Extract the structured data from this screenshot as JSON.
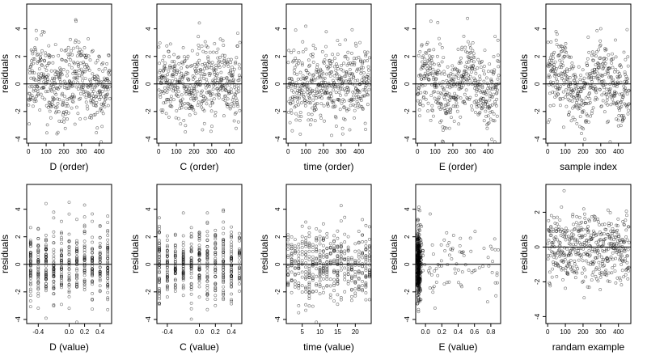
{
  "chart_data": [
    {
      "type": "scatter",
      "xlabel": "D (order)",
      "ylabel": "residuals",
      "xticks": [
        "0",
        "100",
        "200",
        "300",
        "400"
      ],
      "yticks": [
        "-4",
        "-2",
        "0",
        "2",
        "4"
      ],
      "xlim": [
        -10,
        470
      ],
      "ylim": [
        -4.3,
        5.8
      ],
      "refline_y": 0,
      "points": {
        "seed": 11,
        "n": 460,
        "x_dist": "index",
        "x_min": 1,
        "x_max": 460,
        "y_sd": 1.35,
        "y_pattern": "wave"
      }
    },
    {
      "type": "scatter",
      "xlabel": "C (order)",
      "ylabel": "residuals",
      "xticks": [
        "0",
        "100",
        "200",
        "300",
        "400"
      ],
      "yticks": [
        "-4",
        "-2",
        "0",
        "2",
        "4"
      ],
      "xlim": [
        -10,
        470
      ],
      "ylim": [
        -4.3,
        5.8
      ],
      "refline_y": 0,
      "points": {
        "seed": 23,
        "n": 460,
        "x_dist": "index",
        "x_min": 1,
        "x_max": 460,
        "y_sd": 1.35,
        "y_pattern": "flat"
      }
    },
    {
      "type": "scatter",
      "xlabel": "time (order)",
      "ylabel": "residuals",
      "xticks": [
        "0",
        "100",
        "200",
        "300",
        "400"
      ],
      "yticks": [
        "-4",
        "-2",
        "0",
        "2",
        "4"
      ],
      "xlim": [
        -10,
        470
      ],
      "ylim": [
        -4.3,
        5.8
      ],
      "refline_y": 0,
      "points": {
        "seed": 37,
        "n": 460,
        "x_dist": "index",
        "x_min": 1,
        "x_max": 460,
        "y_sd": 1.35,
        "y_pattern": "flat"
      }
    },
    {
      "type": "scatter",
      "xlabel": "E (order)",
      "ylabel": "residuals",
      "xticks": [
        "0",
        "100",
        "200",
        "300",
        "400"
      ],
      "yticks": [
        "-4",
        "-2",
        "0",
        "2",
        "4"
      ],
      "xlim": [
        -10,
        470
      ],
      "ylim": [
        -4.3,
        5.8
      ],
      "refline_y": 0,
      "points": {
        "seed": 41,
        "n": 460,
        "x_dist": "index",
        "x_min": 1,
        "x_max": 460,
        "y_sd": 1.35,
        "y_pattern": "wave"
      }
    },
    {
      "type": "scatter",
      "xlabel": "sample index",
      "ylabel": "residuals",
      "xticks": [
        "0",
        "100",
        "200",
        "300",
        "400"
      ],
      "yticks": [
        "-4",
        "-2",
        "0",
        "2",
        "4"
      ],
      "xlim": [
        -10,
        470
      ],
      "ylim": [
        -4.3,
        5.8
      ],
      "refline_y": 0,
      "points": {
        "seed": 53,
        "n": 460,
        "x_dist": "index",
        "x_min": 1,
        "x_max": 460,
        "y_sd": 1.3,
        "y_pattern": "wave"
      }
    },
    {
      "type": "scatter",
      "xlabel": "D (value)",
      "ylabel": "residuals",
      "xticks": [
        "-0.4",
        "0.0",
        "0.2",
        "0.4"
      ],
      "xtick_values": [
        -0.4,
        0.0,
        0.2,
        0.4
      ],
      "yticks": [
        "-4",
        "-2",
        "0",
        "2",
        "4"
      ],
      "xlim": [
        -0.55,
        0.55
      ],
      "ylim": [
        -4.3,
        5.8
      ],
      "refline_y": 0,
      "points": {
        "seed": 67,
        "n": 460,
        "x_dist": "discrete",
        "x_levels": [
          -0.5,
          -0.4,
          -0.3,
          -0.2,
          -0.1,
          0.0,
          0.1,
          0.2,
          0.3,
          0.4,
          0.5
        ],
        "y_sd": 1.35,
        "y_pattern": "flat"
      }
    },
    {
      "type": "scatter",
      "xlabel": "C (value)",
      "ylabel": "residuals",
      "xticks": [
        "-0.4",
        "0.0",
        "0.2",
        "0.4"
      ],
      "xtick_values": [
        -0.4,
        0.0,
        0.2,
        0.4
      ],
      "yticks": [
        "-4",
        "-2",
        "0",
        "2",
        "4"
      ],
      "xlim": [
        -0.53,
        0.53
      ],
      "ylim": [
        -4.3,
        5.8
      ],
      "refline_y": 0,
      "points": {
        "seed": 71,
        "n": 460,
        "x_dist": "discrete",
        "x_levels": [
          -0.5,
          -0.4,
          -0.3,
          -0.2,
          -0.1,
          0.0,
          0.1,
          0.2,
          0.3,
          0.4,
          0.5
        ],
        "y_sd": 1.35,
        "y_pattern": "flat"
      }
    },
    {
      "type": "scatter",
      "xlabel": "time (value)",
      "ylabel": "residuals",
      "xticks": [
        "5",
        "10",
        "15",
        "20"
      ],
      "xtick_values": [
        5,
        10,
        15,
        20
      ],
      "yticks": [
        "-4",
        "-2",
        "0",
        "2",
        "4"
      ],
      "xlim": [
        0.5,
        24.5
      ],
      "ylim": [
        -4.3,
        5.8
      ],
      "refline_y": 0,
      "points": {
        "seed": 83,
        "n": 460,
        "x_dist": "discrete",
        "x_levels": [
          1,
          2,
          3,
          4,
          5,
          6,
          7,
          8,
          9,
          10,
          11,
          12,
          13,
          14,
          15,
          16,
          17,
          18,
          19,
          20,
          21,
          22,
          23,
          24
        ],
        "y_sd": 1.35,
        "y_pattern": "flat"
      }
    },
    {
      "type": "scatter",
      "xlabel": "E (value)",
      "ylabel": "residuals",
      "xticks": [
        "0.0",
        "0.2",
        "0.4",
        "0.6",
        "0.8"
      ],
      "xtick_values": [
        0.0,
        0.2,
        0.4,
        0.6,
        0.8
      ],
      "yticks": [
        "-4",
        "-2",
        "0",
        "2",
        "4"
      ],
      "xlim": [
        -0.12,
        0.92
      ],
      "ylim": [
        -4.3,
        5.8
      ],
      "refline_y": 0,
      "points": {
        "seed": 97,
        "n": 460,
        "x_dist": "skewed",
        "x_min": -0.1,
        "x_max": 0.9,
        "y_sd": 1.35,
        "y_pattern": "flat"
      }
    },
    {
      "type": "scatter",
      "xlabel": "randam example",
      "ylabel": "residuals",
      "xticks": [
        "0",
        "100",
        "200",
        "300",
        "400"
      ],
      "yticks": [
        "-4",
        "-2",
        "0",
        "2"
      ],
      "xlim": [
        -10,
        470
      ],
      "ylim": [
        -4.4,
        3.6
      ],
      "refline_y": 0,
      "points": {
        "seed": 101,
        "n": 460,
        "x_dist": "index",
        "x_min": 1,
        "x_max": 460,
        "y_sd": 1.0,
        "y_pattern": "flat"
      }
    }
  ],
  "colors": {
    "point": "#000000",
    "axis": "#000000",
    "refline": "#000000",
    "background": "#ffffff"
  }
}
